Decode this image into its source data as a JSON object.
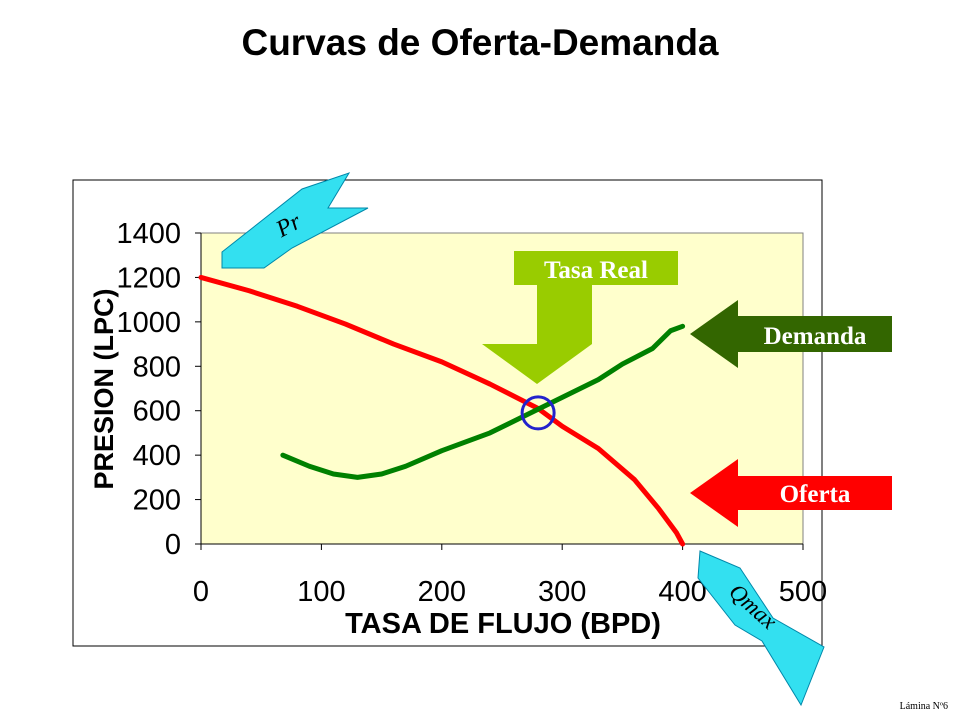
{
  "slide": {
    "title": "Curvas de Oferta-Demanda",
    "footer": "Lámina Nº6"
  },
  "callouts": {
    "pr": "Pr",
    "qmax": "Qmax",
    "tasa_real": "Tasa Real",
    "demanda": "Demanda",
    "oferta": "Oferta"
  },
  "colors": {
    "plot_bg": "#FFFFCC",
    "oferta": "#FF0000",
    "demanda": "#008000",
    "callout_cyan": "#33E0F0",
    "tasa_real": "#99CC00",
    "demanda_arrow": "#336600",
    "oferta_arrow": "#FF0000",
    "intersection_circle": "#2222CC"
  },
  "chart_data": {
    "type": "line",
    "title": "",
    "xlabel": "TASA DE FLUJO (BPD)",
    "ylabel": "PRESION (LPC)",
    "xlim": [
      0,
      500
    ],
    "ylim": [
      0,
      1400
    ],
    "xticks": [
      0,
      100,
      200,
      300,
      400,
      500
    ],
    "yticks": [
      0,
      200,
      400,
      600,
      800,
      1000,
      1200,
      1400
    ],
    "grid": false,
    "series": [
      {
        "name": "Oferta",
        "x": [
          0,
          40,
          80,
          120,
          160,
          200,
          240,
          280,
          300,
          330,
          360,
          380,
          395,
          400
        ],
        "y": [
          1200,
          1140,
          1070,
          990,
          900,
          820,
          720,
          610,
          530,
          430,
          290,
          160,
          50,
          0
        ]
      },
      {
        "name": "Demanda",
        "x": [
          68,
          90,
          110,
          130,
          150,
          170,
          200,
          240,
          270,
          300,
          330,
          350,
          375,
          390,
          400
        ],
        "y": [
          400,
          350,
          315,
          300,
          315,
          350,
          420,
          500,
          580,
          660,
          740,
          810,
          880,
          960,
          980
        ]
      }
    ],
    "intersection": {
      "x": 280,
      "y": 590
    }
  }
}
